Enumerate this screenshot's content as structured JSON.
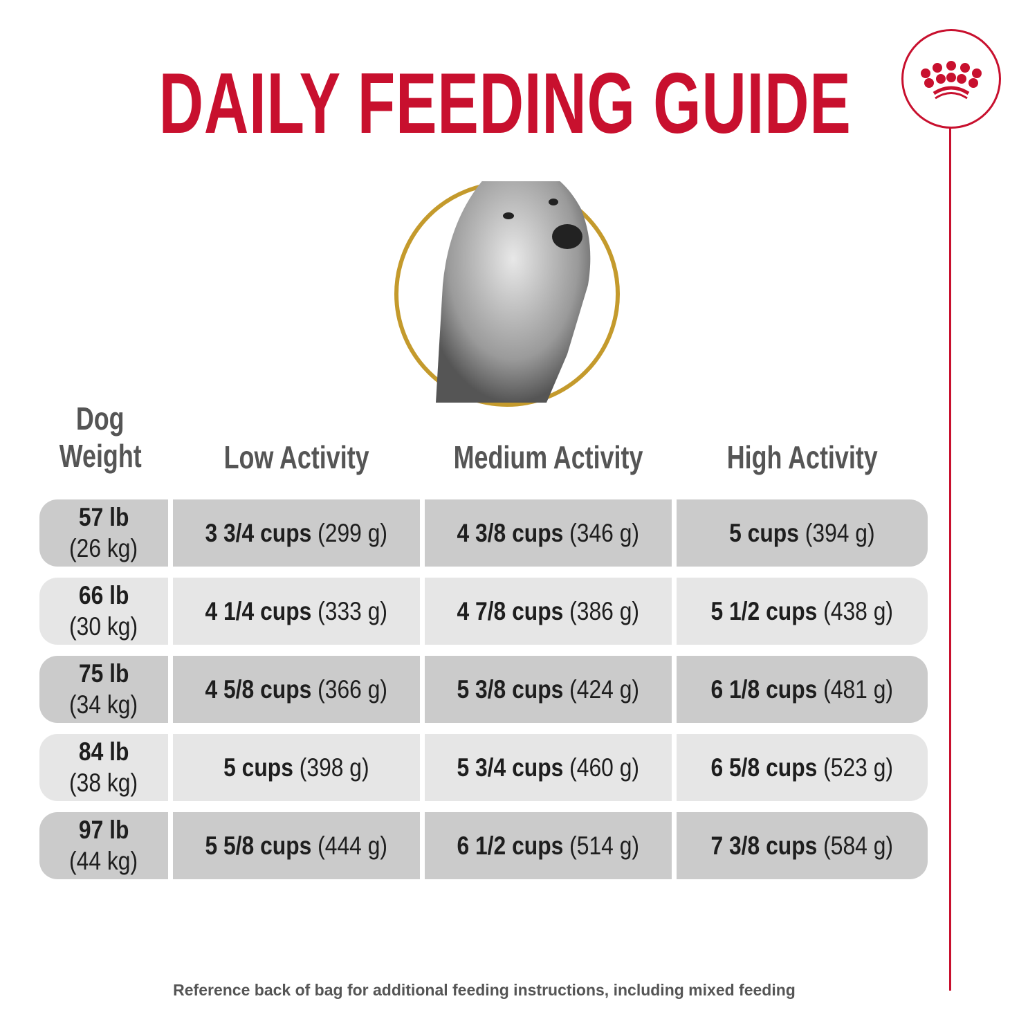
{
  "title": "DAILY FEEDING GUIDE",
  "brand_color": "#c8102e",
  "ring_color": "#c49a2c",
  "logo_icon": "crown-icon",
  "headers": {
    "weight_line1": "Dog",
    "weight_line2": "Weight",
    "low": "Low Activity",
    "medium": "Medium Activity",
    "high": "High Activity"
  },
  "rows": [
    {
      "lb": "57 lb",
      "kg": "(26 kg)",
      "cells": [
        {
          "cups": "3 3/4 cups",
          "grams": "(299 g)"
        },
        {
          "cups": "4 3/8 cups",
          "grams": "(346 g)"
        },
        {
          "cups": "5 cups",
          "grams": "(394 g)"
        }
      ]
    },
    {
      "lb": "66 lb",
      "kg": "(30 kg)",
      "cells": [
        {
          "cups": "4 1/4 cups",
          "grams": "(333 g)"
        },
        {
          "cups": "4 7/8 cups",
          "grams": "(386 g)"
        },
        {
          "cups": "5 1/2 cups",
          "grams": "(438 g)"
        }
      ]
    },
    {
      "lb": "75 lb",
      "kg": "(34 kg)",
      "cells": [
        {
          "cups": "4 5/8 cups",
          "grams": "(366 g)"
        },
        {
          "cups": "5 3/8 cups",
          "grams": "(424 g)"
        },
        {
          "cups": "6 1/8 cups",
          "grams": "(481 g)"
        }
      ]
    },
    {
      "lb": "84 lb",
      "kg": "(38 kg)",
      "cells": [
        {
          "cups": "5 cups",
          "grams": "(398 g)"
        },
        {
          "cups": "5 3/4 cups",
          "grams": "(460 g)"
        },
        {
          "cups": "6 5/8 cups",
          "grams": "(523 g)"
        }
      ]
    },
    {
      "lb": "97 lb",
      "kg": "(44 kg)",
      "cells": [
        {
          "cups": "5 5/8 cups",
          "grams": "(444 g)"
        },
        {
          "cups": "6 1/2 cups",
          "grams": "(514 g)"
        },
        {
          "cups": "7 3/8 cups",
          "grams": "(584 g)"
        }
      ]
    }
  ],
  "footer": "Reference back of bag for additional feeding instructions, including mixed feeding"
}
